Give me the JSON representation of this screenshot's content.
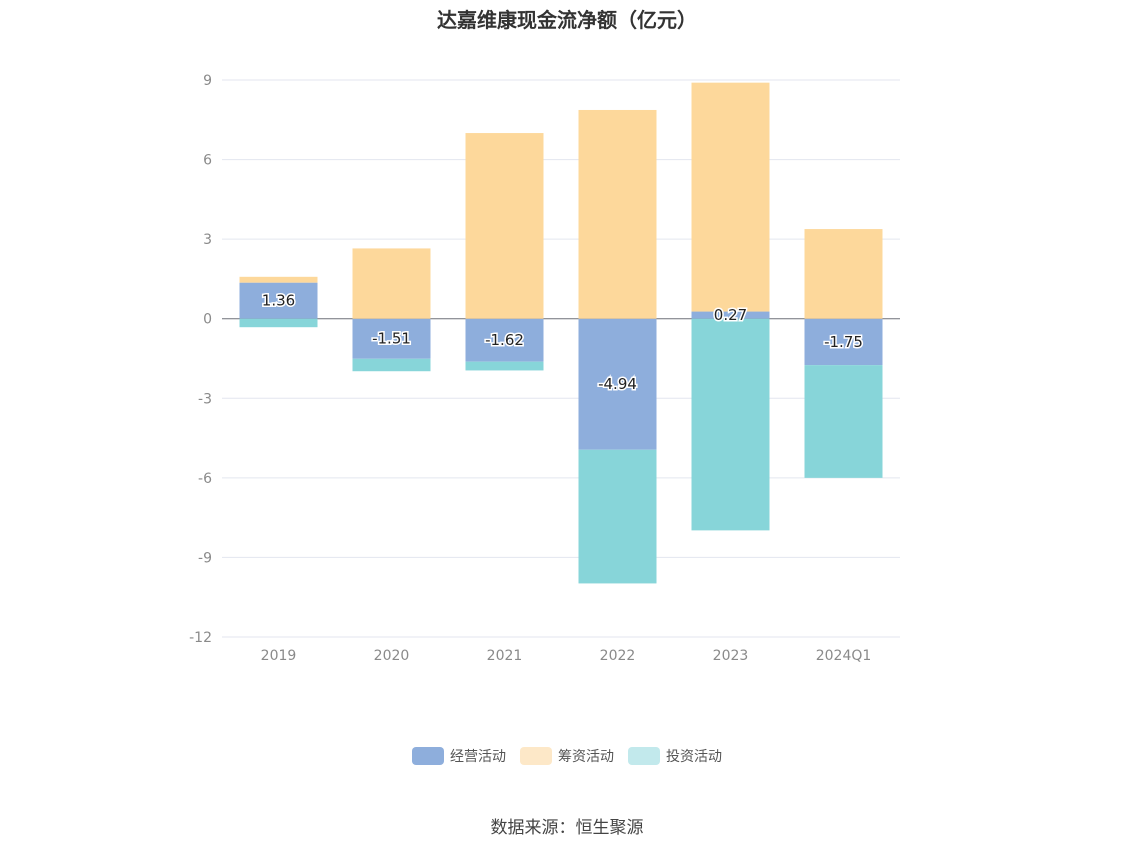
{
  "chart_data": {
    "type": "bar",
    "stacked": true,
    "title": "达嘉维康现金流净额（亿元）",
    "categories": [
      "2019",
      "2020",
      "2021",
      "2022",
      "2023",
      "2024Q1"
    ],
    "series": [
      {
        "name": "经营活动",
        "color": "#8eaedc",
        "legend_color": "#8eaedc",
        "values": [
          1.36,
          -1.51,
          -1.62,
          -4.94,
          0.27,
          -1.75
        ],
        "labels": [
          "1.36",
          "-1.51",
          "-1.62",
          "-4.94",
          "0.27",
          "-1.75"
        ]
      },
      {
        "name": "筹资活动",
        "color": "#fdd89b",
        "legend_color": "#fde8c8",
        "values": [
          0.22,
          2.65,
          7.0,
          7.87,
          8.63,
          3.38
        ]
      },
      {
        "name": "投资活动",
        "color": "#87d5d9",
        "legend_color": "#c2e9ec",
        "values": [
          -0.32,
          -0.47,
          -0.33,
          -5.04,
          -7.98,
          -4.25
        ]
      }
    ],
    "y_ticks": [
      "9",
      "6",
      "3",
      "0",
      "-3",
      "-6",
      "-9",
      "-12"
    ],
    "ylim": [
      -12,
      9
    ],
    "grid": true,
    "legend_position": "bottom"
  },
  "source": "数据来源：恒生聚源"
}
